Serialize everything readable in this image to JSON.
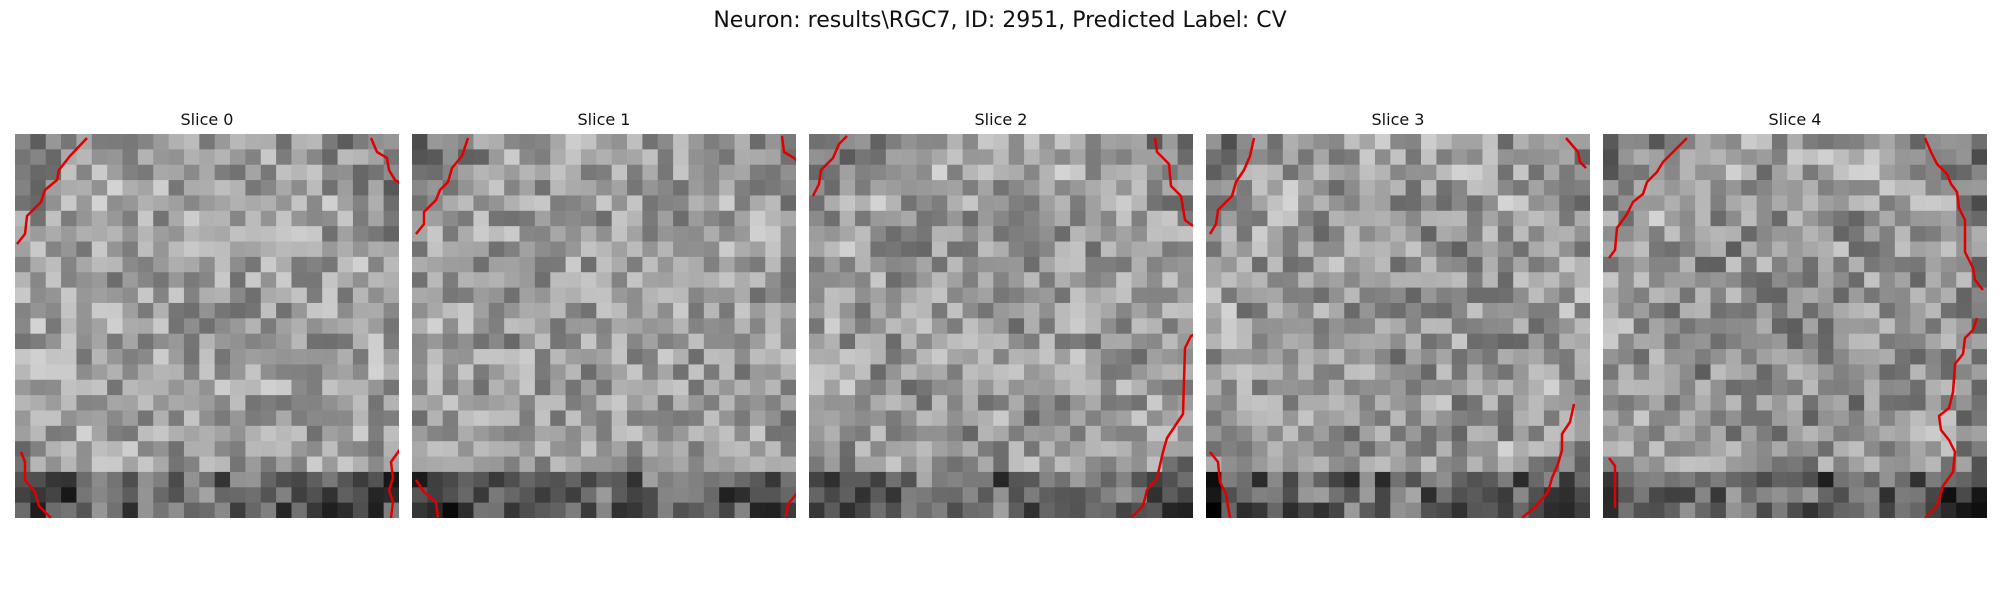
{
  "figure": {
    "title": "Neuron: results\\RGC7, ID: 2951, Predicted Label: CV",
    "overlay_color": "#e00000"
  },
  "slices": [
    {
      "label": "Slice 0"
    },
    {
      "label": "Slice 1"
    },
    {
      "label": "Slice 2"
    },
    {
      "label": "Slice 3"
    },
    {
      "label": "Slice 4"
    }
  ]
}
